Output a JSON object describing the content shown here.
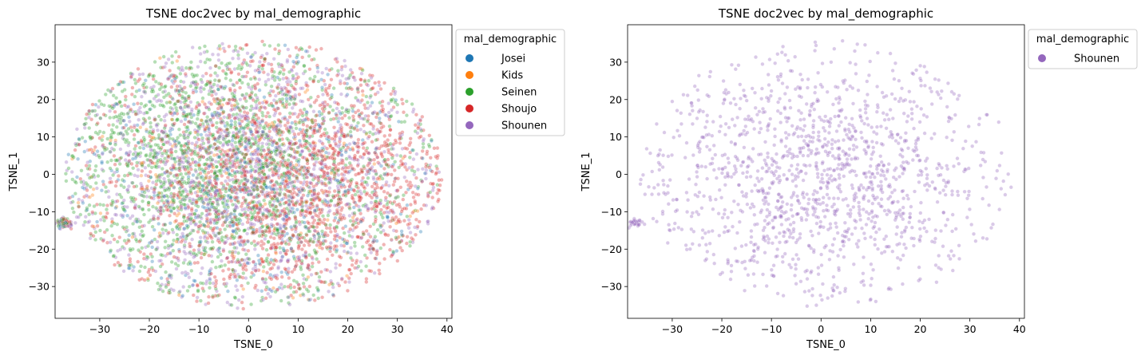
{
  "colors": {
    "Josei": "#1f77b4",
    "Kids": "#ff7f0e",
    "Seinen": "#2ca02c",
    "Shoujo": "#d62728",
    "Shounen": "#9467bd"
  },
  "chart_data": [
    {
      "type": "scatter",
      "title": "TSNE doc2vec by mal_demographic",
      "xlabel": "TSNE_0",
      "ylabel": "TSNE_1",
      "xlim": [
        -39,
        41
      ],
      "ylim": [
        -38.5,
        40
      ],
      "xticks": [
        -30,
        -20,
        -10,
        0,
        10,
        20,
        30,
        40
      ],
      "yticks": [
        -30,
        -20,
        -10,
        0,
        10,
        20,
        30
      ],
      "xtick_labels": [
        "−30",
        "−20",
        "−10",
        "0",
        "10",
        "20",
        "30",
        "40"
      ],
      "ytick_labels": [
        "−30",
        "−20",
        "−10",
        "0",
        "10",
        "20",
        "30"
      ],
      "legend_title": "mal_demographic",
      "legend_position": "outside-upper-right",
      "series": [
        {
          "name": "Josei",
          "approx_points": 500
        },
        {
          "name": "Kids",
          "approx_points": 180
        },
        {
          "name": "Seinen",
          "approx_points": 1700
        },
        {
          "name": "Shoujo",
          "approx_points": 1800
        },
        {
          "name": "Shounen",
          "approx_points": 1400
        }
      ],
      "point_alpha": 0.35
    },
    {
      "type": "scatter",
      "title": "TSNE doc2vec by mal_demographic",
      "xlabel": "TSNE_0",
      "ylabel": "TSNE_1",
      "xlim": [
        -39,
        41
      ],
      "ylim": [
        -38.5,
        40
      ],
      "xticks": [
        -30,
        -20,
        -10,
        0,
        10,
        20,
        30,
        40
      ],
      "yticks": [
        -30,
        -20,
        -10,
        0,
        10,
        20,
        30
      ],
      "xtick_labels": [
        "−30",
        "−20",
        "−10",
        "0",
        "10",
        "20",
        "30",
        "40"
      ],
      "ytick_labels": [
        "−30",
        "−20",
        "−10",
        "0",
        "10",
        "20",
        "30"
      ],
      "legend_title": "mal_demographic",
      "legend_position": "outside-upper-right",
      "series": [
        {
          "name": "Shounen",
          "approx_points": 1400
        }
      ],
      "point_alpha": 0.35
    }
  ]
}
